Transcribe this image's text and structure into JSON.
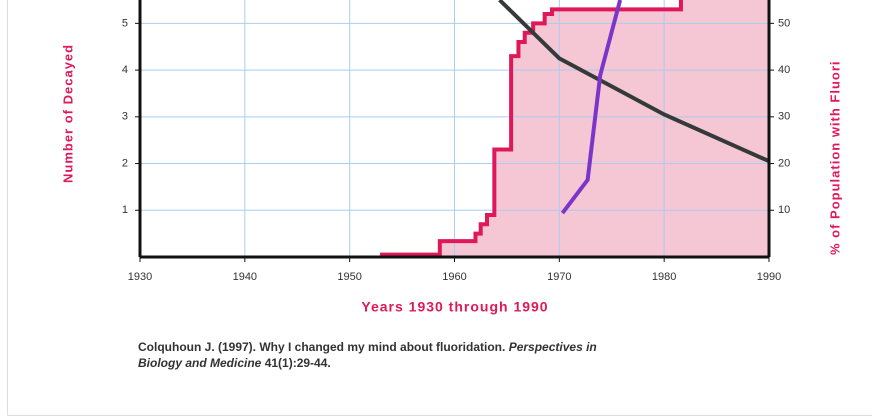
{
  "chart_data": {
    "type": "line",
    "ylabel": "Number of Decayed",
    "y2label": "% of Population with Fluori",
    "xlabel": "Years 1930 through 1990",
    "citation": {
      "text": "Colquhoun J. (1997). Why I changed my mind about fluoridation.",
      "journal": "Perspectives in",
      "journal2": "Biology and Medicine",
      "ref": "41(1):29-44."
    },
    "xlim": [
      1930,
      1990
    ],
    "xticks": [
      1930,
      1940,
      1950,
      1960,
      1970,
      1980,
      1990
    ],
    "ylim": [
      0,
      5.5
    ],
    "yticks": [
      1,
      2,
      3,
      4,
      5
    ],
    "y2lim": [
      0,
      55
    ],
    "y2ticks": [
      10,
      20,
      30,
      40,
      50
    ],
    "grid": true,
    "series": [
      {
        "color": "#e0185a",
        "fill": "#f5c6d3",
        "axis": "y2",
        "step": true,
        "x": [
          1952.9,
          1958.6,
          1962,
          1962.5,
          1963.1,
          1963.8,
          1965.4,
          1966.1,
          1966.7,
          1967.5,
          1968.6,
          1969.3,
          1979.4,
          1981.6
        ],
        "values": [
          0.5,
          3.4,
          5,
          7,
          9,
          23,
          43,
          46,
          48,
          50,
          52,
          53,
          53,
          55
        ]
      },
      {
        "color": "#34393a",
        "x": [
          1964.3,
          1970,
          1980,
          1990
        ],
        "values": [
          5.5,
          4.25,
          3.05,
          2.05
        ]
      },
      {
        "color": "#7b35c8",
        "x": [
          1970.3,
          1972.7,
          1973.9,
          1975.8
        ],
        "values": [
          0.94,
          1.65,
          3.89,
          5.5
        ]
      }
    ]
  }
}
